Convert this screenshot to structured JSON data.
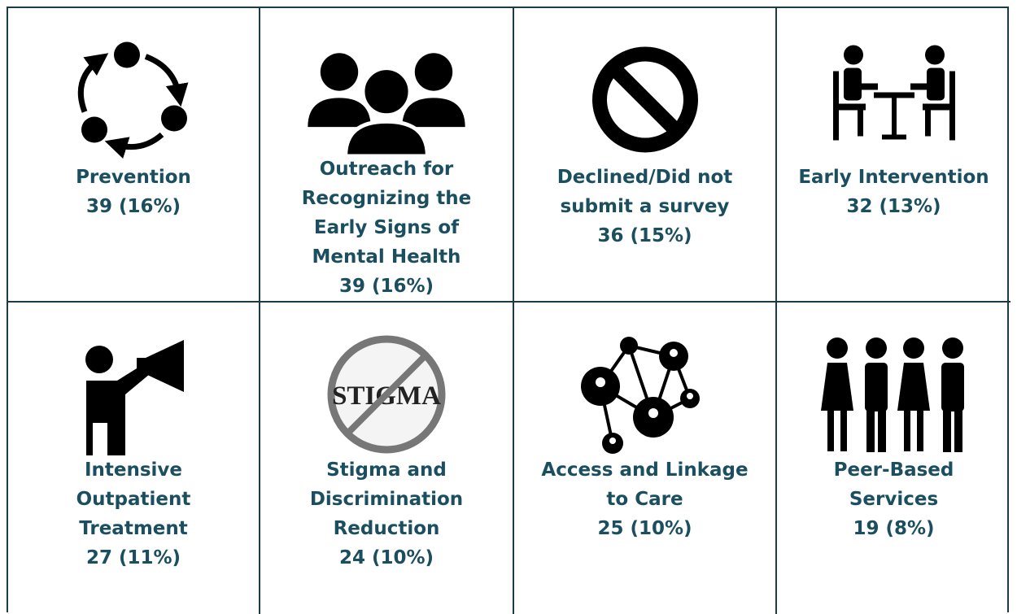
{
  "cells": [
    {
      "lines": [
        "Prevention"
      ],
      "value": "39 (16%)"
    },
    {
      "lines": [
        "Outreach for",
        "Recognizing the",
        "Early Signs of",
        "Mental Health"
      ],
      "value": "39 (16%)"
    },
    {
      "lines": [
        "Declined/Did not",
        "submit a survey"
      ],
      "value": "36 (15%)"
    },
    {
      "lines": [
        "Early Intervention"
      ],
      "value": "32 (13%)"
    },
    {
      "lines": [
        "Intensive",
        "Outpatient",
        "Treatment"
      ],
      "value": "27 (11%)"
    },
    {
      "lines": [
        "Stigma and",
        "Discrimination",
        "Reduction"
      ],
      "value": "24 (10%)"
    },
    {
      "lines": [
        "Access and Linkage",
        "to Care"
      ],
      "value": "25 (10%)"
    },
    {
      "lines": [
        "Peer-Based",
        "Services"
      ],
      "value": "19 (8%)"
    }
  ],
  "stigma_icon_text": "STIGMA"
}
